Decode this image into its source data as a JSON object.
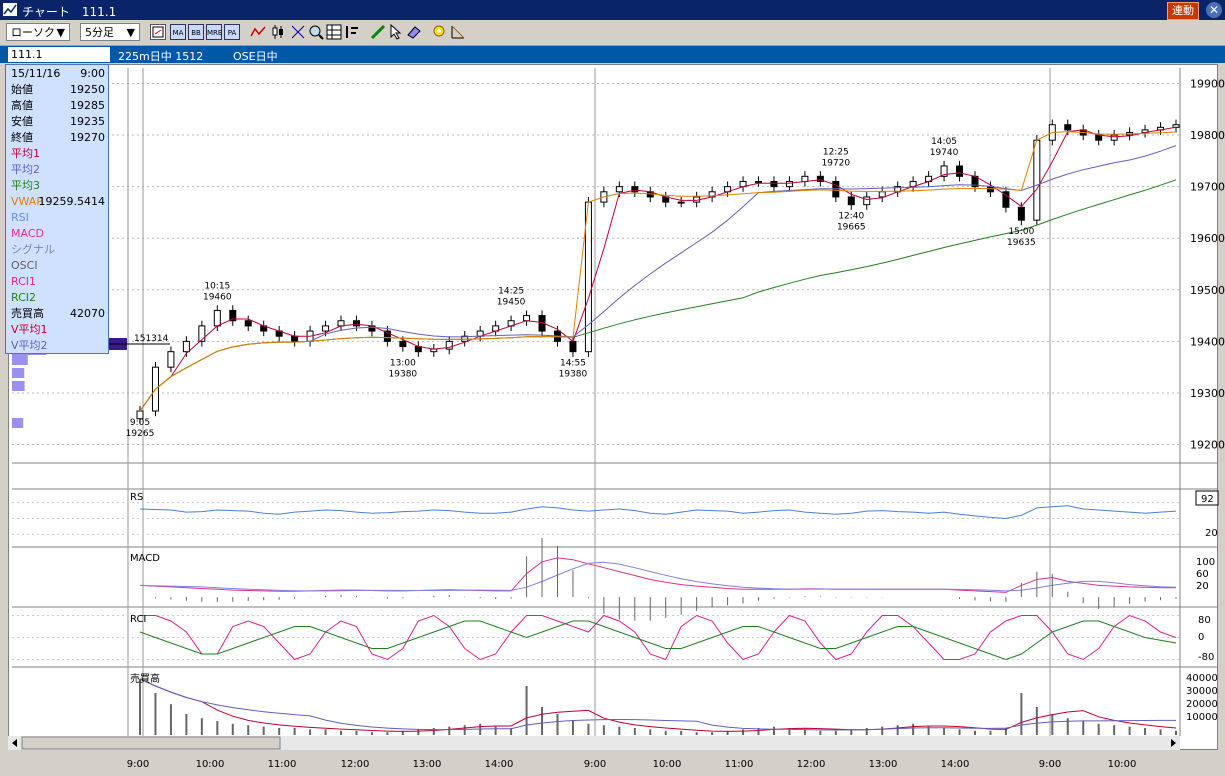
{
  "window": {
    "title": "チャート　111.1",
    "sync_button": "連動",
    "close_label": "✕"
  },
  "toolbar": {
    "chart_type": "ローソク",
    "interval": "5分足",
    "dropdown_arrow": "▼",
    "icons": [
      "chart-settings-icon",
      "ma-icon",
      "bb-icon",
      "mre-icon",
      "pa-icon",
      "line-chart-icon",
      "candle-icon",
      "cross-icon",
      "zoom-icon",
      "grid-icon",
      "bars-icon",
      "pen-icon",
      "cursor-icon",
      "eraser-icon",
      "tools-icon",
      "measure-icon"
    ],
    "icon_labels": {
      "ma": "MA",
      "bb": "BB",
      "mre": "MRE",
      "pa": "PA"
    }
  },
  "infobar": {
    "code": "111.1",
    "instrument": "225m日中 1512",
    "session": "OSE日中"
  },
  "panel": {
    "datetime": [
      "15/11/16",
      "9:00"
    ],
    "rows": [
      {
        "label": "始値",
        "value": "19250",
        "color": "#000000"
      },
      {
        "label": "高値",
        "value": "19285",
        "color": "#000000"
      },
      {
        "label": "安値",
        "value": "19235",
        "color": "#000000"
      },
      {
        "label": "終値",
        "value": "19270",
        "color": "#000000"
      },
      {
        "label": "平均1",
        "value": "",
        "color": "#c00030"
      },
      {
        "label": "平均2",
        "value": "",
        "color": "#6060c0"
      },
      {
        "label": "平均3",
        "value": "",
        "color": "#208020"
      },
      {
        "label": "VWAP",
        "value": "19259.5414",
        "color": "#e08000"
      },
      {
        "label": "RSI",
        "value": "",
        "color": "#6090e0"
      },
      {
        "label": "MACD",
        "value": "",
        "color": "#e03090"
      },
      {
        "label": "シグナル",
        "value": "",
        "color": "#8080c0"
      },
      {
        "label": "OSCI",
        "value": "",
        "color": "#606060"
      },
      {
        "label": "RCI1",
        "value": "",
        "color": "#e0208a"
      },
      {
        "label": "RCI2",
        "value": "",
        "color": "#208020"
      },
      {
        "label": "売買高",
        "value": "42070",
        "color": "#000000"
      },
      {
        "label": "V平均1",
        "value": "",
        "color": "#c00030"
      },
      {
        "label": "V平均2",
        "value": "",
        "color": "#6060c0"
      }
    ]
  },
  "price_axis": {
    "labels": [
      "19900",
      "19800",
      "19700",
      "19600",
      "19500",
      "19400",
      "19300",
      "19200"
    ]
  },
  "volume_profile_label": "151314",
  "rsi": {
    "title": "RS",
    "value_box": "92",
    "axis": [
      "20"
    ]
  },
  "macd": {
    "title": "MACD",
    "axis": [
      "100",
      "60",
      "20"
    ]
  },
  "rci": {
    "title": "RCI",
    "axis": [
      "80",
      "0",
      "-80"
    ]
  },
  "volume": {
    "title": "売買高",
    "axis": [
      "40000",
      "30000",
      "20000",
      "10000"
    ]
  },
  "time_axis": [
    "9:00",
    "10:00",
    "11:00",
    "12:00",
    "13:00",
    "14:00",
    "9:00",
    "10:00",
    "11:00",
    "12:00",
    "13:00",
    "14:00",
    "9:00",
    "10:00"
  ],
  "annotations": [
    {
      "time": "10:15",
      "price": "19460"
    },
    {
      "time": "9:05",
      "price": "19265"
    },
    {
      "time": "13:00",
      "price": "19380"
    },
    {
      "time": "14:25",
      "price": "19450"
    },
    {
      "time": "14:55",
      "price": "19380"
    },
    {
      "time": "12:25",
      "price": "19720"
    },
    {
      "time": "12:40",
      "price": "19665"
    },
    {
      "time": "14:05",
      "price": "19740"
    },
    {
      "time": "15:00",
      "price": "19635"
    }
  ],
  "colors": {
    "ma1": "#c00030",
    "ma2": "#6060c0",
    "ma3": "#208020",
    "vwap": "#e08000",
    "rsi": "#4a7fd8",
    "macd": "#e03090",
    "signal": "#8080e0",
    "rci1": "#e0208a",
    "rci2": "#208020",
    "panel_bg": "#cfe1ff",
    "title_bg": "#0a246a",
    "info_bg": "#0058a8"
  },
  "chart_data": {
    "type": "candlestick",
    "y_range": [
      19170,
      19930
    ],
    "price_candles": [
      19265,
      19350,
      19380,
      19400,
      19430,
      19460,
      19440,
      19430,
      19420,
      19410,
      19400,
      19420,
      19430,
      19440,
      19430,
      19420,
      19400,
      19390,
      19380,
      19385,
      19400,
      19410,
      19420,
      19430,
      19440,
      19450,
      19420,
      19400,
      19380,
      19670,
      19690,
      19700,
      19690,
      19680,
      19670,
      19670,
      19680,
      19690,
      19700,
      19710,
      19710,
      19700,
      19710,
      19720,
      19710,
      19680,
      19665,
      19680,
      19690,
      19700,
      19710,
      19720,
      19740,
      19720,
      19700,
      19690,
      19660,
      19635,
      19790,
      19820,
      19810,
      19800,
      19790,
      19800,
      19805,
      19810,
      19815,
      19820
    ],
    "rsi_values": [
      68,
      67,
      66,
      62,
      63,
      66,
      65,
      64,
      60,
      58,
      62,
      64,
      66,
      65,
      62,
      60,
      61,
      63,
      64,
      66,
      65,
      62,
      60,
      60,
      62,
      68,
      72,
      70,
      66,
      64,
      66,
      68,
      65,
      60,
      58,
      62,
      66,
      65,
      64,
      60,
      62,
      65,
      66,
      62,
      60,
      58,
      60,
      64,
      65,
      63,
      62,
      60,
      62,
      58,
      55,
      52,
      50,
      56,
      70,
      72,
      74,
      68,
      66,
      64,
      62,
      60,
      62,
      64
    ],
    "macd_values": [
      30,
      28,
      26,
      24,
      22,
      20,
      18,
      17,
      16,
      15,
      15,
      16,
      17,
      18,
      18,
      17,
      16,
      16,
      17,
      18,
      19,
      18,
      17,
      16,
      16,
      60,
      90,
      100,
      95,
      85,
      75,
      65,
      55,
      45,
      38,
      32,
      28,
      25,
      22,
      20,
      20,
      20,
      20,
      21,
      21,
      20,
      20,
      20,
      20,
      20,
      20,
      20,
      20,
      18,
      16,
      14,
      12,
      30,
      45,
      50,
      40,
      35,
      30,
      28,
      26,
      25,
      24,
      24
    ],
    "rci1_values": [
      80,
      80,
      60,
      20,
      -60,
      -60,
      40,
      60,
      40,
      -20,
      -80,
      -60,
      20,
      60,
      40,
      -60,
      -80,
      -40,
      60,
      80,
      40,
      -40,
      -80,
      -60,
      20,
      80,
      80,
      60,
      40,
      20,
      80,
      60,
      20,
      -60,
      -80,
      40,
      80,
      60,
      -20,
      -80,
      -60,
      20,
      80,
      60,
      -20,
      -80,
      -60,
      20,
      80,
      80,
      40,
      -20,
      -80,
      -80,
      -60,
      20,
      60,
      80,
      80,
      20,
      -60,
      -80,
      -40,
      40,
      80,
      60,
      20,
      0
    ],
    "rci2_values": [
      20,
      0,
      -20,
      -40,
      -60,
      -60,
      -40,
      -20,
      0,
      20,
      40,
      40,
      20,
      0,
      -20,
      -40,
      -40,
      -20,
      0,
      20,
      40,
      60,
      60,
      40,
      20,
      0,
      20,
      40,
      60,
      60,
      40,
      20,
      0,
      -20,
      -40,
      -40,
      -20,
      0,
      20,
      40,
      40,
      20,
      0,
      -20,
      -40,
      -40,
      -20,
      0,
      20,
      40,
      40,
      20,
      0,
      -20,
      -40,
      -60,
      -80,
      -60,
      -20,
      20,
      40,
      60,
      60,
      40,
      20,
      0,
      -10,
      -20
    ],
    "volume_values": [
      40000,
      30000,
      22000,
      15000,
      12000,
      10000,
      8000,
      7000,
      6000,
      5000,
      5000,
      4000,
      4000,
      3000,
      3000,
      2000,
      2000,
      3000,
      4000,
      5000,
      6000,
      7000,
      8000,
      6000,
      5000,
      35000,
      20000,
      15000,
      10000,
      8000,
      7000,
      6000,
      5000,
      4000,
      3000,
      3000,
      2000,
      2000,
      3000,
      4000,
      5000,
      6000,
      5000,
      4000,
      3000,
      3000,
      4000,
      5000,
      6000,
      7000,
      8000,
      6000,
      5000,
      4000,
      3000,
      3000,
      5000,
      30000,
      20000,
      15000,
      12000,
      10000,
      8000,
      7000,
      6000,
      5000,
      4000,
      3000
    ],
    "volume_range": [
      0,
      45000
    ]
  }
}
